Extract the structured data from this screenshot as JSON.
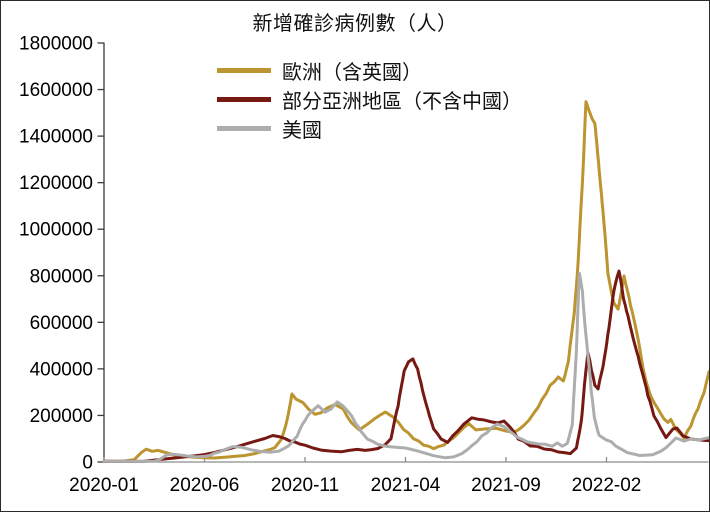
{
  "title": "新增確診病例數（人）",
  "chart_data": {
    "type": "line",
    "title": "新增確診病例數（人）",
    "grid": false,
    "legend_position": "upper-left-inside",
    "x_axis": {
      "tick_labels": [
        "2020-01",
        "2020-06",
        "2020-11",
        "2021-04",
        "2021-09",
        "2022-02"
      ],
      "tick_positions_months": [
        0,
        5,
        10,
        15,
        20,
        25
      ],
      "range_months": [
        0,
        30.1
      ],
      "unit": "months since 2020-01"
    },
    "y_axis": {
      "min": 0,
      "max": 1800000,
      "tick_step": 200000,
      "tick_labels": [
        "0",
        "200000",
        "400000",
        "600000",
        "800000",
        "1000000",
        "1200000",
        "1400000",
        "1600000",
        "1800000"
      ]
    },
    "legend": [
      {
        "label": "歐洲（含英國）",
        "color": "#BC9430"
      },
      {
        "label": "部分亞洲地區（不含中國）",
        "color": "#771913"
      },
      {
        "label": "美國",
        "color": "#ADADAD"
      }
    ],
    "series": [
      {
        "name": "歐洲（含英國）",
        "color": "#BC9430",
        "points": [
          [
            0,
            2000
          ],
          [
            0.5,
            2000
          ],
          [
            1,
            4000
          ],
          [
            1.5,
            10000
          ],
          [
            1.85,
            40000
          ],
          [
            2.1,
            55000
          ],
          [
            2.4,
            46000
          ],
          [
            2.7,
            50000
          ],
          [
            3.0,
            42000
          ],
          [
            3.5,
            30000
          ],
          [
            4,
            24000
          ],
          [
            4.5,
            20000
          ],
          [
            5,
            18000
          ],
          [
            5.5,
            17000
          ],
          [
            6,
            20000
          ],
          [
            6.5,
            24000
          ],
          [
            7,
            28000
          ],
          [
            7.5,
            36000
          ],
          [
            8,
            48000
          ],
          [
            8.5,
            62000
          ],
          [
            8.8,
            95000
          ],
          [
            9.05,
            160000
          ],
          [
            9.35,
            292000
          ],
          [
            9.55,
            270000
          ],
          [
            9.9,
            255000
          ],
          [
            10.2,
            225000
          ],
          [
            10.5,
            205000
          ],
          [
            10.8,
            212000
          ],
          [
            11.1,
            232000
          ],
          [
            11.5,
            247000
          ],
          [
            11.9,
            228000
          ],
          [
            12.3,
            170000
          ],
          [
            12.7,
            138000
          ],
          [
            13.1,
            162000
          ],
          [
            13.5,
            188000
          ],
          [
            14,
            215000
          ],
          [
            14.4,
            192000
          ],
          [
            14.9,
            140000
          ],
          [
            15.4,
            100000
          ],
          [
            15.9,
            72000
          ],
          [
            16.4,
            57000
          ],
          [
            16.9,
            72000
          ],
          [
            17.4,
            105000
          ],
          [
            17.9,
            148000
          ],
          [
            18.15,
            165000
          ],
          [
            18.5,
            138000
          ],
          [
            19,
            142000
          ],
          [
            19.5,
            145000
          ],
          [
            20,
            133000
          ],
          [
            20.4,
            127000
          ],
          [
            20.9,
            158000
          ],
          [
            21.4,
            212000
          ],
          [
            21.8,
            270000
          ],
          [
            22.2,
            330000
          ],
          [
            22.6,
            365000
          ],
          [
            22.85,
            348000
          ],
          [
            23.1,
            430000
          ],
          [
            23.4,
            640000
          ],
          [
            23.6,
            880000
          ],
          [
            23.8,
            1200000
          ],
          [
            23.98,
            1548000
          ],
          [
            24.12,
            1512000
          ],
          [
            24.3,
            1472000
          ],
          [
            24.42,
            1455000
          ],
          [
            24.6,
            1290000
          ],
          [
            24.75,
            1150000
          ],
          [
            24.88,
            1020000
          ],
          [
            25.07,
            810000
          ],
          [
            25.37,
            683000
          ],
          [
            25.57,
            657000
          ],
          [
            25.87,
            799000
          ],
          [
            26.2,
            670000
          ],
          [
            26.57,
            528000
          ],
          [
            26.87,
            382000
          ],
          [
            27.2,
            284000
          ],
          [
            27.56,
            228000
          ],
          [
            27.86,
            185000
          ],
          [
            28.05,
            170000
          ],
          [
            28.2,
            183000
          ],
          [
            28.45,
            140000
          ],
          [
            28.86,
            103000
          ],
          [
            29.2,
            155000
          ],
          [
            29.55,
            228000
          ],
          [
            29.85,
            297000
          ],
          [
            30.1,
            388000
          ]
        ]
      },
      {
        "name": "部分亞洲地區（不含中國）",
        "color": "#771913",
        "points": [
          [
            0,
            500
          ],
          [
            1,
            1000
          ],
          [
            2,
            3000
          ],
          [
            2.5,
            8000
          ],
          [
            3,
            13000
          ],
          [
            3.5,
            17000
          ],
          [
            4,
            22000
          ],
          [
            4.5,
            26000
          ],
          [
            5,
            32000
          ],
          [
            5.5,
            41000
          ],
          [
            6,
            52000
          ],
          [
            6.5,
            63000
          ],
          [
            7,
            76000
          ],
          [
            7.5,
            89000
          ],
          [
            8,
            101000
          ],
          [
            8.4,
            114000
          ],
          [
            8.7,
            109000
          ],
          [
            9,
            101000
          ],
          [
            9.5,
            86000
          ],
          [
            10,
            72000
          ],
          [
            10.4,
            60000
          ],
          [
            10.8,
            51000
          ],
          [
            11.3,
            47000
          ],
          [
            11.8,
            44000
          ],
          [
            12.2,
            50000
          ],
          [
            12.6,
            54000
          ],
          [
            13,
            50000
          ],
          [
            13.63,
            58000
          ],
          [
            14.0,
            75000
          ],
          [
            14.28,
            100000
          ],
          [
            14.63,
            240000
          ],
          [
            14.93,
            390000
          ],
          [
            15.15,
            430000
          ],
          [
            15.37,
            443000
          ],
          [
            15.6,
            400000
          ],
          [
            15.77,
            340000
          ],
          [
            16.1,
            228000
          ],
          [
            16.4,
            142000
          ],
          [
            16.77,
            99000
          ],
          [
            17.1,
            84000
          ],
          [
            17.6,
            133000
          ],
          [
            17.9,
            163000
          ],
          [
            18.3,
            190000
          ],
          [
            18.6,
            184000
          ],
          [
            18.9,
            181000
          ],
          [
            19.3,
            172000
          ],
          [
            19.6,
            168000
          ],
          [
            19.9,
            176000
          ],
          [
            20.2,
            150000
          ],
          [
            20.6,
            99000
          ],
          [
            21.2,
            69000
          ],
          [
            21.9,
            56000
          ],
          [
            22.6,
            43000
          ],
          [
            23.2,
            36000
          ],
          [
            23.5,
            60000
          ],
          [
            23.75,
            180000
          ],
          [
            23.9,
            330000
          ],
          [
            24.08,
            468000
          ],
          [
            24.25,
            395000
          ],
          [
            24.42,
            330000
          ],
          [
            24.58,
            314000
          ],
          [
            24.83,
            412000
          ],
          [
            25.07,
            550000
          ],
          [
            25.37,
            735000
          ],
          [
            25.62,
            820000
          ],
          [
            25.85,
            700000
          ],
          [
            26.07,
            627000
          ],
          [
            26.57,
            455000
          ],
          [
            27.06,
            284000
          ],
          [
            27.36,
            198000
          ],
          [
            27.71,
            142000
          ],
          [
            27.96,
            105000
          ],
          [
            28.31,
            142000
          ],
          [
            28.5,
            146000
          ],
          [
            28.81,
            112000
          ],
          [
            29.2,
            99000
          ],
          [
            29.6,
            95000
          ],
          [
            30.05,
            92000
          ]
        ]
      },
      {
        "name": "美國",
        "color": "#ADADAD",
        "points": [
          [
            0,
            300
          ],
          [
            1,
            500
          ],
          [
            2,
            1000
          ],
          [
            2.5,
            3000
          ],
          [
            2.8,
            12000
          ],
          [
            3.1,
            30000
          ],
          [
            3.4,
            33000
          ],
          [
            3.8,
            30000
          ],
          [
            4.2,
            25000
          ],
          [
            4.6,
            22000
          ],
          [
            5,
            24000
          ],
          [
            5.5,
            38000
          ],
          [
            6,
            53000
          ],
          [
            6.4,
            66000
          ],
          [
            6.8,
            64000
          ],
          [
            7.3,
            53000
          ],
          [
            7.8,
            45000
          ],
          [
            8.3,
            42000
          ],
          [
            8.7,
            47000
          ],
          [
            9.2,
            70000
          ],
          [
            9.6,
            110000
          ],
          [
            10,
            178000
          ],
          [
            10.3,
            215000
          ],
          [
            10.65,
            242000
          ],
          [
            11.0,
            214000
          ],
          [
            11.3,
            228000
          ],
          [
            11.6,
            258000
          ],
          [
            11.9,
            240000
          ],
          [
            12.2,
            212000
          ],
          [
            12.5,
            168000
          ],
          [
            12.8,
            130000
          ],
          [
            13.1,
            99000
          ],
          [
            13.6,
            77000
          ],
          [
            14,
            68000
          ],
          [
            14.5,
            63000
          ],
          [
            15,
            60000
          ],
          [
            15.5,
            50000
          ],
          [
            15.9,
            40000
          ],
          [
            16.4,
            27000
          ],
          [
            17,
            18000
          ],
          [
            17.4,
            22000
          ],
          [
            17.8,
            36000
          ],
          [
            18.3,
            70000
          ],
          [
            18.8,
            112000
          ],
          [
            19.3,
            148000
          ],
          [
            19.55,
            163000
          ],
          [
            19.9,
            152000
          ],
          [
            20.3,
            125000
          ],
          [
            20.8,
            97000
          ],
          [
            21.3,
            82000
          ],
          [
            21.9,
            77000
          ],
          [
            22.3,
            68000
          ],
          [
            22.55,
            82000
          ],
          [
            22.8,
            68000
          ],
          [
            23.05,
            80000
          ],
          [
            23.3,
            160000
          ],
          [
            23.5,
            480000
          ],
          [
            23.65,
            810000
          ],
          [
            23.8,
            735000
          ],
          [
            23.88,
            640000
          ],
          [
            24.08,
            455000
          ],
          [
            24.25,
            295000
          ],
          [
            24.4,
            190000
          ],
          [
            24.63,
            115000
          ],
          [
            24.98,
            95000
          ],
          [
            25.22,
            88000
          ],
          [
            25.72,
            56000
          ],
          [
            26.37,
            34000
          ],
          [
            26.9,
            29000
          ],
          [
            27.3,
            31000
          ],
          [
            27.71,
            47000
          ],
          [
            28.21,
            82000
          ],
          [
            28.46,
            103000
          ],
          [
            28.86,
            90000
          ],
          [
            29.2,
            99000
          ],
          [
            29.6,
            95000
          ],
          [
            30.05,
            104000
          ]
        ]
      }
    ],
    "style": {
      "line_width": 3,
      "y_spine_color": "#3a3a3a",
      "x_spine_color": "#8c8c8c",
      "tick_label_color": "#000000",
      "background": "#ffffff"
    }
  }
}
